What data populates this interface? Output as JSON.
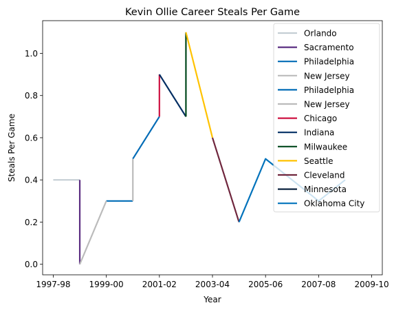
{
  "chart_data": {
    "type": "line",
    "title": "Kevin Ollie Career Steals Per Game",
    "xlabel": "Year",
    "ylabel": "Steals Per Game",
    "xlim": [
      -0.4,
      12.4
    ],
    "ylim": [
      -0.05,
      1.155
    ],
    "x_ticks": [
      {
        "pos": 0,
        "label": "1997-98"
      },
      {
        "pos": 2,
        "label": "1999-00"
      },
      {
        "pos": 4,
        "label": "2001-02"
      },
      {
        "pos": 6,
        "label": "2003-04"
      },
      {
        "pos": 8,
        "label": "2005-06"
      },
      {
        "pos": 10,
        "label": "2007-08"
      },
      {
        "pos": 12,
        "label": "2009-10"
      }
    ],
    "y_ticks": [
      0.0,
      0.2,
      0.4,
      0.6,
      0.8,
      1.0
    ],
    "y_tick_labels": [
      "0.0",
      "0.2",
      "0.4",
      "0.6",
      "0.8",
      "1.0"
    ],
    "legend_position": "upper right",
    "series": [
      {
        "name": "Orlando",
        "color": "#c4ced4",
        "points": [
          [
            0,
            0.4
          ],
          [
            1,
            0.4
          ]
        ]
      },
      {
        "name": "Sacramento",
        "color": "#5a2d81",
        "points": [
          [
            1,
            0.4
          ],
          [
            1,
            0.0
          ]
        ]
      },
      {
        "name": "Philadelphia",
        "color": "#006bb6",
        "points": [
          [
            2,
            0.3
          ],
          [
            3,
            0.3
          ]
        ]
      },
      {
        "name": "New Jersey",
        "color": "#bbbbbb",
        "points": [
          [
            1,
            0.0
          ],
          [
            2,
            0.3
          ]
        ]
      },
      {
        "name": "Philadelphia",
        "color": "#006bb6",
        "points": [
          [
            3,
            0.5
          ],
          [
            4,
            0.7
          ]
        ]
      },
      {
        "name": "New Jersey",
        "color": "#bbbbbb",
        "points": [
          [
            3,
            0.3
          ],
          [
            3,
            0.5
          ]
        ]
      },
      {
        "name": "Chicago",
        "color": "#ce1141",
        "points": [
          [
            4,
            0.7
          ],
          [
            4,
            0.9
          ]
        ]
      },
      {
        "name": "Indiana",
        "color": "#002d62",
        "points": [
          [
            4,
            0.9
          ],
          [
            5,
            0.7
          ]
        ]
      },
      {
        "name": "Milwaukee",
        "color": "#00471b",
        "points": [
          [
            5,
            0.7
          ],
          [
            5,
            1.1
          ]
        ]
      },
      {
        "name": "Seattle",
        "color": "#ffc200",
        "points": [
          [
            5,
            1.1
          ],
          [
            6,
            0.6
          ]
        ]
      },
      {
        "name": "Cleveland",
        "color": "#6f263d",
        "points": [
          [
            6,
            0.6
          ],
          [
            7,
            0.2
          ]
        ]
      },
      {
        "name": "Minnesota",
        "color": "#0c2340",
        "points": []
      },
      {
        "name": "Oklahoma City",
        "color": "#0072bb",
        "points": [
          [
            7,
            0.2
          ],
          [
            8,
            0.5
          ],
          [
            9,
            0.4
          ],
          [
            10,
            0.3
          ],
          [
            11,
            0.4
          ]
        ]
      }
    ]
  }
}
